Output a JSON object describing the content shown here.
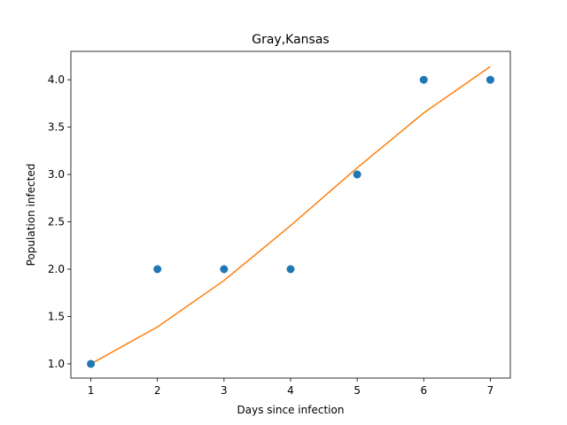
{
  "chart_data": {
    "type": "scatter",
    "title": "Gray,Kansas",
    "xlabel": "Days since infection",
    "ylabel": "Population infected",
    "xlim": [
      0.7,
      7.3
    ],
    "ylim": [
      0.85,
      4.3
    ],
    "xticks": [
      1,
      2,
      3,
      4,
      5,
      6,
      7
    ],
    "xtick_labels": [
      "1",
      "2",
      "3",
      "4",
      "5",
      "6",
      "7"
    ],
    "yticks": [
      1.0,
      1.5,
      2.0,
      2.5,
      3.0,
      3.5,
      4.0
    ],
    "ytick_labels": [
      "1.0",
      "1.5",
      "2.0",
      "2.5",
      "3.0",
      "3.5",
      "4.0"
    ],
    "grid": false,
    "series": [
      {
        "kind": "scatter",
        "color": "#1f77b4",
        "x": [
          1,
          2,
          3,
          4,
          5,
          6,
          7
        ],
        "y": [
          1,
          2,
          2,
          2,
          3,
          4,
          4
        ]
      },
      {
        "kind": "line",
        "color": "#ff7f0e",
        "x": [
          1,
          2,
          3,
          4,
          5,
          6,
          7
        ],
        "y": [
          1.0,
          1.39,
          1.88,
          2.46,
          3.07,
          3.65,
          4.14
        ]
      }
    ]
  }
}
